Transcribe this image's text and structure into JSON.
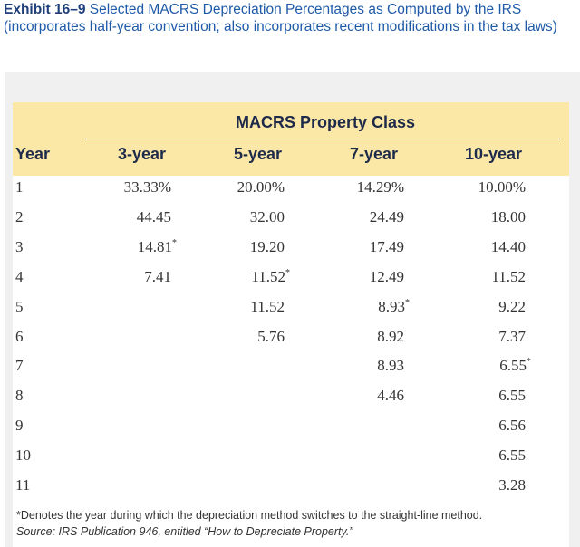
{
  "caption": {
    "exhibit_number": "Exhibit 16–9",
    "text": " Selected MACRS Depreciation Percentages as Computed by the IRS (incorporates half-year convention; also incorporates recent modifications in the tax laws)"
  },
  "table": {
    "group_header": "MACRS Property Class",
    "year_header": "Year",
    "columns": [
      "3-year",
      "5-year",
      "7-year",
      "10-year"
    ],
    "rows": [
      {
        "year": "1",
        "values": [
          [
            "33.33%",
            ""
          ],
          [
            "20.00%",
            ""
          ],
          [
            "14.29%",
            ""
          ],
          [
            "10.00%",
            ""
          ]
        ]
      },
      {
        "year": "2",
        "values": [
          [
            "44.45",
            ""
          ],
          [
            "32.00",
            ""
          ],
          [
            "24.49",
            ""
          ],
          [
            "18.00",
            ""
          ]
        ]
      },
      {
        "year": "3",
        "values": [
          [
            "14.81",
            "*"
          ],
          [
            "19.20",
            ""
          ],
          [
            "17.49",
            ""
          ],
          [
            "14.40",
            ""
          ]
        ]
      },
      {
        "year": "4",
        "values": [
          [
            "7.41",
            ""
          ],
          [
            "11.52",
            "*"
          ],
          [
            "12.49",
            ""
          ],
          [
            "11.52",
            ""
          ]
        ]
      },
      {
        "year": "5",
        "values": [
          [
            "",
            ""
          ],
          [
            "11.52",
            ""
          ],
          [
            "8.93",
            "*"
          ],
          [
            "9.22",
            ""
          ]
        ]
      },
      {
        "year": "6",
        "values": [
          [
            "",
            ""
          ],
          [
            "5.76",
            ""
          ],
          [
            "8.92",
            ""
          ],
          [
            "7.37",
            ""
          ]
        ]
      },
      {
        "year": "7",
        "values": [
          [
            "",
            ""
          ],
          [
            "",
            ""
          ],
          [
            "8.93",
            ""
          ],
          [
            "6.55",
            "*"
          ]
        ]
      },
      {
        "year": "8",
        "values": [
          [
            "",
            ""
          ],
          [
            "",
            ""
          ],
          [
            "4.46",
            ""
          ],
          [
            "6.55",
            ""
          ]
        ]
      },
      {
        "year": "9",
        "values": [
          [
            "",
            ""
          ],
          [
            "",
            ""
          ],
          [
            "",
            ""
          ],
          [
            "6.56",
            ""
          ]
        ]
      },
      {
        "year": "10",
        "values": [
          [
            "",
            ""
          ],
          [
            "",
            ""
          ],
          [
            "",
            ""
          ],
          [
            "6.55",
            ""
          ]
        ]
      },
      {
        "year": "11",
        "values": [
          [
            "",
            ""
          ],
          [
            "",
            ""
          ],
          [
            "",
            ""
          ],
          [
            "3.28",
            ""
          ]
        ]
      }
    ],
    "footnote": "*Denotes the year during which the depreciation method switches to the straight-line method.",
    "source": "Source: IRS Publication 946, entitled “How to Depreciate Property.”"
  },
  "colors": {
    "header_band": "#fbe8a6",
    "caption_blue": "#1e5aa8",
    "exhibit_navy": "#1e3f7a"
  }
}
